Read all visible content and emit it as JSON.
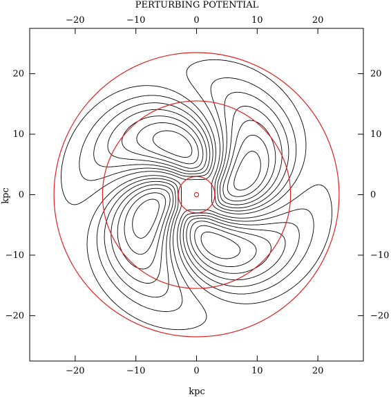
{
  "chart_data": {
    "type": "contour",
    "title": "PERTURBING POTENTIAL",
    "xlabel": "kpc",
    "ylabel": "kpc",
    "xlim": [
      -27.5,
      27.5
    ],
    "ylim": [
      -27.5,
      27.5
    ],
    "xticks": [
      -20,
      -10,
      0,
      10,
      20
    ],
    "yticks": [
      -20,
      -10,
      0,
      10,
      20
    ],
    "xtick_labels": [
      "−20",
      "−10",
      "0",
      "10",
      "20"
    ],
    "ytick_labels": [
      "−20",
      "−10",
      "0",
      "10",
      "20"
    ],
    "grid": false,
    "contours": {
      "pattern": "two-armed (m=2) spiral perturbation",
      "positive": {
        "style": "solid",
        "color": "#000000",
        "peaks": [
          [
            -8.5,
            0
          ],
          [
            8.5,
            0
          ]
        ]
      },
      "negative": {
        "style": "dashed",
        "color": "#000000",
        "peaks": [
          [
            0,
            11
          ],
          [
            0,
            -11
          ]
        ]
      },
      "levels_per_sign": 7
    },
    "circles": [
      {
        "radius": 23.5,
        "color": "#e02020"
      },
      {
        "radius": 15.5,
        "color": "#e02020"
      },
      {
        "radius": 3.0,
        "color": "#e02020"
      },
      {
        "radius": 0.35,
        "color": "#e02020"
      }
    ]
  }
}
